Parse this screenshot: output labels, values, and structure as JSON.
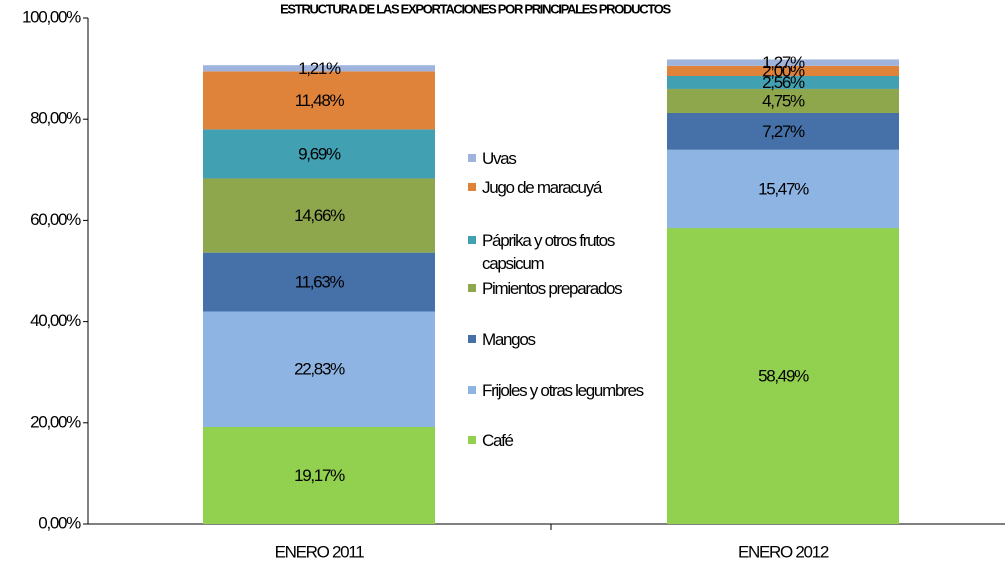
{
  "chart_data": {
    "type": "stacked_bar",
    "title": "ESTRUCTURA DE LAS EXPORTACIONES POR PRINCIPALES PRODUCTOS",
    "categories": [
      "ENERO 2011",
      "ENERO 2012"
    ],
    "series": [
      {
        "name": "Café",
        "color": "#92d050",
        "values": [
          19.17,
          58.49
        ],
        "value_labels": [
          "19,17%",
          "58,49%"
        ]
      },
      {
        "name": "Frijoles y otras legumbres",
        "color": "#8eb4e3",
        "values": [
          22.83,
          15.47
        ],
        "value_labels": [
          "22,83%",
          "15,47%"
        ]
      },
      {
        "name": "Mangos",
        "color": "#4670a8",
        "values": [
          11.63,
          7.27
        ],
        "value_labels": [
          "11,63%",
          "7,27%"
        ]
      },
      {
        "name": "Pimientos preparados",
        "color": "#8ea64c",
        "values": [
          14.66,
          4.75
        ],
        "value_labels": [
          "14,66%",
          "4,75%"
        ]
      },
      {
        "name": "Páprika y otros frutos capsicum",
        "color": "#41a0b2",
        "values": [
          9.69,
          2.56
        ],
        "value_labels": [
          "9,69%",
          "2,56%"
        ]
      },
      {
        "name": "Jugo de maracuyá",
        "color": "#e0833a",
        "values": [
          11.48,
          2.0
        ],
        "value_labels": [
          "11,48%",
          "2,00%"
        ]
      },
      {
        "name": "Uvas",
        "color": "#9fb4dc",
        "values": [
          1.21,
          1.27
        ],
        "value_labels": [
          "1,21%",
          "1,27%"
        ]
      }
    ],
    "ylim": [
      0,
      100
    ],
    "yticks": [
      {
        "value": 0,
        "label": "0,00%"
      },
      {
        "value": 20,
        "label": "20,00%"
      },
      {
        "value": 40,
        "label": "40,00%"
      },
      {
        "value": 60,
        "label": "60,00%"
      },
      {
        "value": 80,
        "label": "80,00%"
      },
      {
        "value": 100,
        "label": "100,00%"
      }
    ],
    "legend": "center"
  }
}
